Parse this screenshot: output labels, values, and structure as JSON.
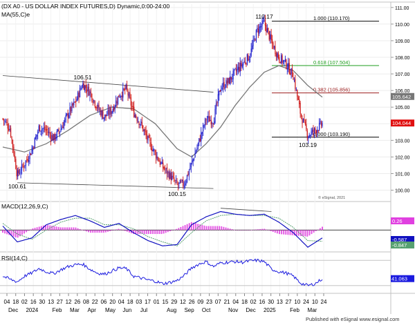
{
  "header": {
    "title": "(DX A0 - US DOLLAR INDEX FUTURES,D) Dynamic,0:00-24:00",
    "ma_label": "MA(55,C)e",
    "copyright": "© eSignal, 2021"
  },
  "footer": {
    "attribution": "Published with eSignal  www.esignal.com"
  },
  "colors": {
    "up": "#1b1bcc",
    "down": "#cc1111",
    "ma": "#777777",
    "macd": "#1010c0",
    "signal": "#56a070",
    "hist": "#e040e0",
    "rsi": "#1a1adf",
    "fib": "#000000",
    "fib618": "#1e9e1e",
    "fib382": "#9b1b1b",
    "price_tag_current": "#e01010"
  },
  "chart_data": [
    {
      "panel": "price",
      "type": "candlestick",
      "title": "(DX A0 - US DOLLAR INDEX FUTURES,D) Dynamic,0:00-24:00",
      "ylim": [
        99.4,
        111.2
      ],
      "y_ticks": [
        "100.00",
        "101.00",
        "102.00",
        "103.00",
        "104.00",
        "105.00",
        "106.00",
        "107.00",
        "108.00",
        "109.00",
        "110.00",
        "111.00"
      ],
      "x_tick_labels": [
        "04",
        "18",
        "02",
        "16",
        "30",
        "13",
        "27",
        "12",
        "26",
        "08",
        "22",
        "06",
        "20",
        "04",
        "18",
        "03",
        "17",
        "01",
        "15",
        "29",
        "12",
        "26",
        "09",
        "23",
        "07",
        "21",
        "04",
        "18",
        "02",
        "16",
        "30",
        "13",
        "27",
        "10",
        "24",
        "10",
        "24"
      ],
      "x_month_labels": [
        {
          "label": "Dec",
          "at": 0
        },
        {
          "label": "2024",
          "at": 2
        },
        {
          "label": "Feb",
          "at": 5
        },
        {
          "label": "Mar",
          "at": 7
        },
        {
          "label": "Apr",
          "at": 9
        },
        {
          "label": "May",
          "at": 11
        },
        {
          "label": "Jun",
          "at": 13
        },
        {
          "label": "Jul",
          "at": 15
        },
        {
          "label": "Aug",
          "at": 18
        },
        {
          "label": "Sep",
          "at": 20
        },
        {
          "label": "Oct",
          "at": 22
        },
        {
          "label": "Nov",
          "at": 25
        },
        {
          "label": "Dec",
          "at": 27
        },
        {
          "label": "2025",
          "at": 29
        },
        {
          "label": "Feb",
          "at": 32
        },
        {
          "label": "Mar",
          "at": 34
        }
      ],
      "close_path": [
        [
          0,
          104.3
        ],
        [
          1,
          103.7
        ],
        [
          2,
          100.9
        ],
        [
          3,
          101.6
        ],
        [
          4,
          102.4
        ],
        [
          5,
          103.8
        ],
        [
          6,
          103.6
        ],
        [
          7,
          103.1
        ],
        [
          8,
          103.7
        ],
        [
          9,
          104.6
        ],
        [
          10,
          105.3
        ],
        [
          11,
          106.4
        ],
        [
          12,
          105.9
        ],
        [
          13,
          105.0
        ],
        [
          14,
          104.4
        ],
        [
          15,
          104.8
        ],
        [
          16,
          105.7
        ],
        [
          17,
          106.1
        ],
        [
          18,
          104.7
        ],
        [
          19,
          104.0
        ],
        [
          20,
          103.0
        ],
        [
          21,
          102.2
        ],
        [
          22,
          101.4
        ],
        [
          23,
          100.9
        ],
        [
          24,
          100.3
        ],
        [
          25,
          100.4
        ],
        [
          26,
          101.6
        ],
        [
          27,
          102.9
        ],
        [
          28,
          104.3
        ],
        [
          29,
          104.2
        ],
        [
          30,
          106.2
        ],
        [
          31,
          106.5
        ],
        [
          32,
          107.1
        ],
        [
          33,
          107.6
        ],
        [
          34,
          108.1
        ],
        [
          35,
          109.6
        ],
        [
          36,
          110.1
        ],
        [
          37,
          108.9
        ],
        [
          38,
          108.0
        ],
        [
          39,
          107.6
        ],
        [
          40,
          106.9
        ],
        [
          41,
          104.6
        ],
        [
          42,
          103.3
        ],
        [
          43,
          103.6
        ],
        [
          44,
          104.0
        ]
      ],
      "ma_series": [
        [
          0,
          102.6
        ],
        [
          3,
          102.3
        ],
        [
          6,
          102.8
        ],
        [
          9,
          103.6
        ],
        [
          12,
          104.5
        ],
        [
          15,
          105.0
        ],
        [
          18,
          104.9
        ],
        [
          21,
          104.0
        ],
        [
          24,
          102.5
        ],
        [
          26,
          102.0
        ],
        [
          28,
          102.8
        ],
        [
          30,
          103.8
        ],
        [
          32,
          105.1
        ],
        [
          34,
          106.2
        ],
        [
          36,
          107.1
        ],
        [
          38,
          107.5
        ],
        [
          40,
          107.2
        ],
        [
          42,
          106.3
        ],
        [
          44,
          105.6
        ]
      ],
      "trendlines": [
        {
          "from": [
            0,
            106.9
          ],
          "to": [
            29,
            105.9
          ]
        },
        {
          "from": [
            2,
            100.45
          ],
          "to": [
            29,
            100.1
          ]
        }
      ],
      "fib_levels": [
        {
          "label": "1.000 (110.170)",
          "value": 110.17
        },
        {
          "label": "0.618 (107.504)",
          "value": 107.504
        },
        {
          "label": "0.382 (105.856)",
          "value": 105.856
        },
        {
          "label": "0.000 (103.190)",
          "value": 103.19
        }
      ],
      "annotations": [
        {
          "text": "106.51",
          "x": 11,
          "y": 106.51
        },
        {
          "text": "100.61",
          "x": 2,
          "y": 100.61
        },
        {
          "text": "100.15",
          "x": 24,
          "y": 100.15
        },
        {
          "text": "110.17",
          "x": 36,
          "y": 110.17
        },
        {
          "text": "103.19",
          "x": 42,
          "y": 103.19
        }
      ],
      "price_tags": [
        {
          "text": "105.642",
          "value": 105.642
        },
        {
          "text": "104.044",
          "value": 104.044
        }
      ]
    },
    {
      "panel": "macd",
      "type": "line",
      "title": "MACD(12,26,9,C)",
      "ylim": [
        -1.5,
        2.0
      ],
      "macd_path": [
        [
          0,
          0.3
        ],
        [
          2,
          -0.9
        ],
        [
          4,
          -0.6
        ],
        [
          6,
          0.4
        ],
        [
          8,
          0.8
        ],
        [
          10,
          1.1
        ],
        [
          12,
          0.7
        ],
        [
          14,
          0.2
        ],
        [
          16,
          0.5
        ],
        [
          18,
          -0.2
        ],
        [
          20,
          -0.8
        ],
        [
          22,
          -1.2
        ],
        [
          24,
          -1.1
        ],
        [
          26,
          0.4
        ],
        [
          28,
          1.0
        ],
        [
          30,
          1.4
        ],
        [
          32,
          1.2
        ],
        [
          34,
          1.1
        ],
        [
          36,
          1.2
        ],
        [
          38,
          0.6
        ],
        [
          40,
          -0.2
        ],
        [
          42,
          -1.3
        ],
        [
          44,
          -0.6
        ]
      ],
      "signal_path": [
        [
          0,
          0.5
        ],
        [
          2,
          -0.3
        ],
        [
          4,
          -0.7
        ],
        [
          6,
          0.0
        ],
        [
          8,
          0.6
        ],
        [
          10,
          0.9
        ],
        [
          12,
          0.9
        ],
        [
          14,
          0.4
        ],
        [
          16,
          0.4
        ],
        [
          18,
          0.1
        ],
        [
          20,
          -0.5
        ],
        [
          22,
          -0.9
        ],
        [
          24,
          -1.2
        ],
        [
          26,
          -0.2
        ],
        [
          28,
          0.7
        ],
        [
          30,
          1.1
        ],
        [
          32,
          1.2
        ],
        [
          34,
          1.1
        ],
        [
          36,
          1.1
        ],
        [
          38,
          0.9
        ],
        [
          40,
          0.2
        ],
        [
          42,
          -0.8
        ],
        [
          44,
          -0.85
        ]
      ],
      "divergence_line": {
        "from": [
          30,
          1.65
        ],
        "to": [
          37,
          1.4
        ]
      },
      "values": [
        {
          "text": "0.26",
          "value": 0.26,
          "color": "#e040e0"
        },
        {
          "text": "-0.587",
          "value": -0.587,
          "color": "#1010c0"
        },
        {
          "text": "-0.847",
          "value": -0.847,
          "color": "#56a070"
        }
      ]
    },
    {
      "panel": "rsi",
      "type": "line",
      "title": "RSI(14,C)",
      "ylim": [
        20,
        80
      ],
      "guide_levels": [
        70,
        30
      ],
      "rsi_path": [
        [
          0,
          45
        ],
        [
          1,
          40
        ],
        [
          2,
          36
        ],
        [
          3,
          45
        ],
        [
          4,
          50
        ],
        [
          5,
          57
        ],
        [
          6,
          52
        ],
        [
          7,
          49
        ],
        [
          8,
          55
        ],
        [
          9,
          60
        ],
        [
          10,
          63
        ],
        [
          11,
          64
        ],
        [
          12,
          56
        ],
        [
          13,
          50
        ],
        [
          14,
          48
        ],
        [
          15,
          53
        ],
        [
          16,
          58
        ],
        [
          17,
          57
        ],
        [
          18,
          45
        ],
        [
          19,
          42
        ],
        [
          20,
          39
        ],
        [
          21,
          37
        ],
        [
          22,
          33
        ],
        [
          23,
          35
        ],
        [
          24,
          38
        ],
        [
          25,
          46
        ],
        [
          26,
          58
        ],
        [
          27,
          64
        ],
        [
          28,
          68
        ],
        [
          29,
          60
        ],
        [
          30,
          66
        ],
        [
          31,
          67
        ],
        [
          32,
          68
        ],
        [
          33,
          67
        ],
        [
          34,
          69
        ],
        [
          35,
          70
        ],
        [
          36,
          68
        ],
        [
          37,
          56
        ],
        [
          38,
          52
        ],
        [
          39,
          50
        ],
        [
          40,
          45
        ],
        [
          41,
          34
        ],
        [
          42,
          30
        ],
        [
          43,
          33
        ],
        [
          44,
          41
        ]
      ],
      "values": [
        {
          "text": "41.063",
          "value": 41.063
        }
      ]
    }
  ]
}
